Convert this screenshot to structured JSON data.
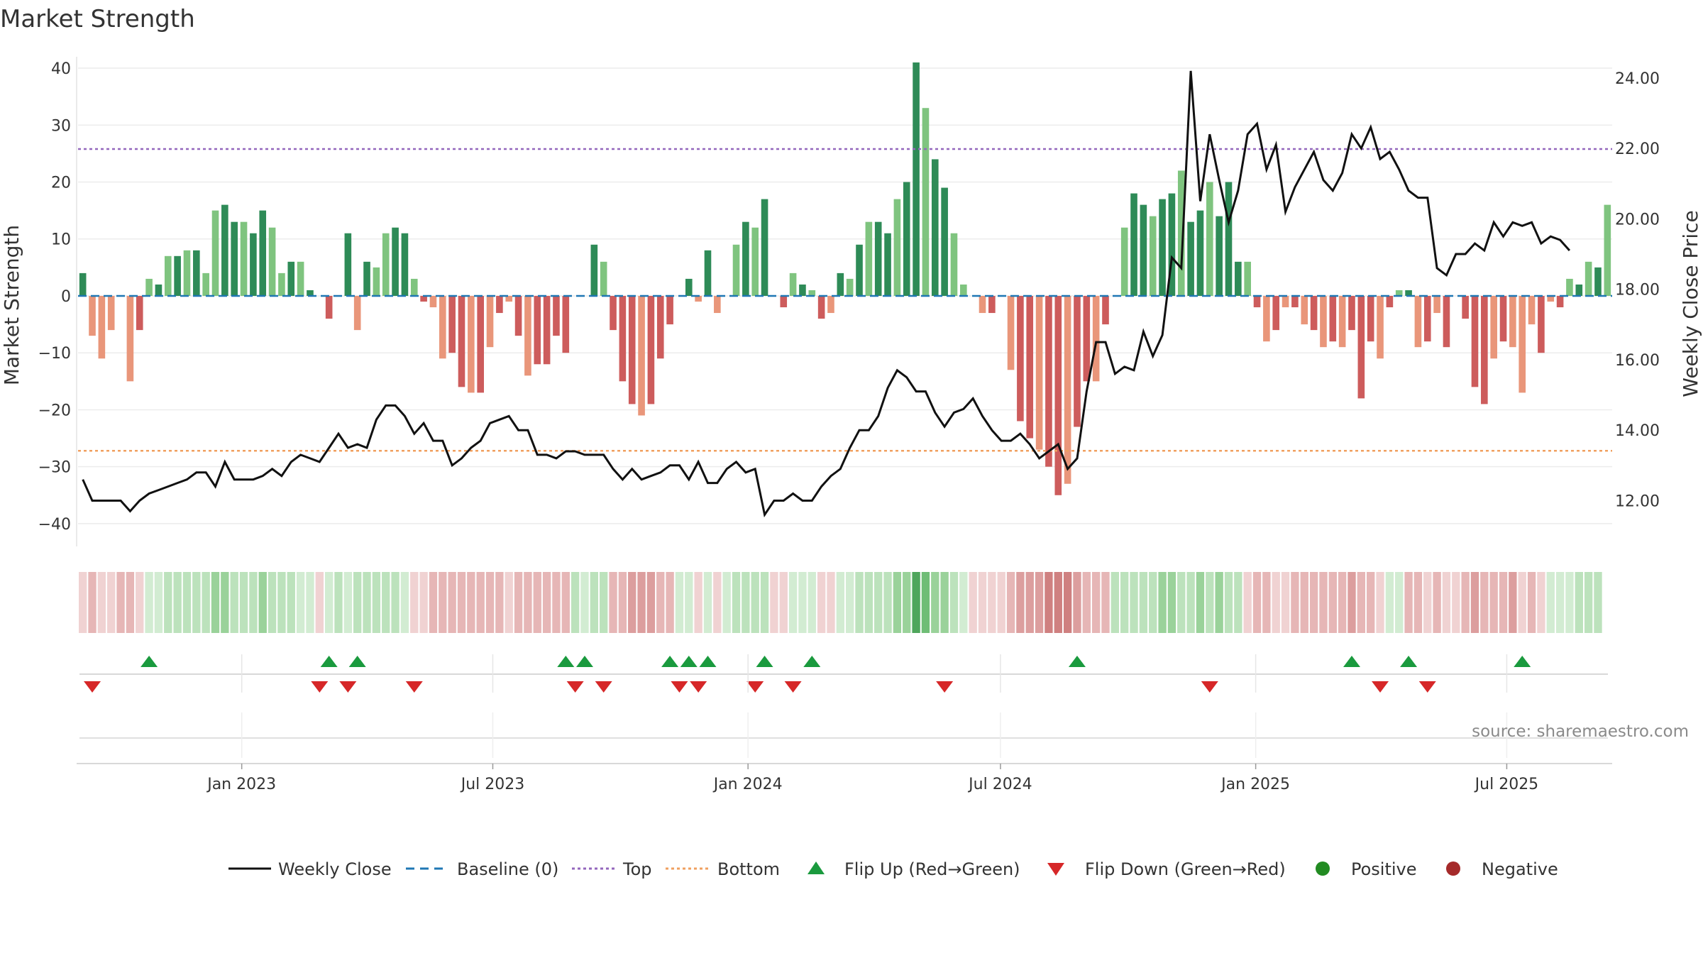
{
  "chart_data": {
    "type": "bar",
    "title": "Market Strength",
    "ylabel": "Market Strength",
    "y2label": "Weekly Close Price",
    "ylim": [
      -44,
      42
    ],
    "y2lim": [
      10.7,
      24.6
    ],
    "yticks": [
      40,
      30,
      20,
      10,
      0,
      -10,
      -20,
      -30,
      -40
    ],
    "ytick_labels": [
      "40",
      "30",
      "20",
      "10",
      "0",
      "−10",
      "−20",
      "−30",
      "−40"
    ],
    "y2ticks": [
      24,
      22,
      20,
      18,
      16,
      14,
      12
    ],
    "y2tick_labels": [
      "24.00",
      "22.00",
      "20.00",
      "18.00",
      "16.00",
      "14.00",
      "12.00"
    ],
    "top_line": 25.8,
    "bottom_line": -27.2,
    "x_start": "2022-09-05",
    "x_end": "2025-09-15",
    "xticks": [
      "2023-01-01",
      "2023-07-01",
      "2024-01-01",
      "2024-07-01",
      "2025-01-01",
      "2025-07-01"
    ],
    "xtick_labels": [
      "Jan 2023",
      "Jul 2023",
      "Jan 2024",
      "Jul 2024",
      "Jan 2025",
      "Jul 2025"
    ],
    "strength": [
      4,
      -7,
      -11,
      -6,
      0,
      -15,
      -6,
      3,
      2,
      7,
      7,
      8,
      8,
      4,
      15,
      16,
      13,
      13,
      11,
      15,
      12,
      4,
      6,
      6,
      1,
      0,
      -4,
      0,
      11,
      -6,
      6,
      5,
      11,
      12,
      11,
      3,
      -1,
      -2,
      -11,
      -10,
      -16,
      -17,
      -17,
      -9,
      -3,
      -1,
      -7,
      -14,
      -12,
      -12,
      -7,
      -10,
      0,
      0,
      9,
      6,
      -6,
      -15,
      -19,
      -21,
      -19,
      -11,
      -5,
      0,
      3,
      -1,
      8,
      -3,
      0,
      9,
      13,
      12,
      17,
      0,
      -2,
      4,
      2,
      1,
      -4,
      -3,
      4,
      3,
      9,
      13,
      13,
      11,
      17,
      20,
      41,
      33,
      24,
      19,
      11,
      2,
      0,
      -3,
      -3,
      0,
      -13,
      -22,
      -25,
      -27,
      -30,
      -35,
      -33,
      -23,
      -15,
      -15,
      -5,
      0,
      12,
      18,
      16,
      14,
      17,
      18,
      22,
      13,
      15,
      20,
      14,
      20,
      6,
      6,
      -2,
      -8,
      -6,
      -2,
      -2,
      -5,
      -6,
      -9,
      -8,
      -9,
      -6,
      -18,
      -8,
      -11,
      -2,
      1,
      1,
      -9,
      -8,
      -3,
      -9,
      0,
      -4,
      -16,
      -19,
      -11,
      -8,
      -9,
      -17,
      -5,
      -10,
      -1,
      -2,
      3,
      2,
      6,
      5,
      16
    ],
    "close": [
      12.6,
      12.0,
      12.0,
      12.0,
      12.0,
      11.7,
      12.0,
      12.2,
      12.3,
      12.4,
      12.5,
      12.6,
      12.8,
      12.8,
      12.4,
      13.1,
      12.6,
      12.6,
      12.6,
      12.7,
      12.9,
      12.7,
      13.1,
      13.3,
      13.2,
      13.1,
      13.5,
      13.9,
      13.5,
      13.6,
      13.5,
      14.3,
      14.7,
      14.7,
      14.4,
      13.9,
      14.2,
      13.7,
      13.7,
      13.0,
      13.2,
      13.5,
      13.7,
      14.2,
      14.3,
      14.4,
      14.0,
      14.0,
      13.3,
      13.3,
      13.2,
      13.4,
      13.4,
      13.3,
      13.3,
      13.3,
      12.9,
      12.6,
      12.9,
      12.6,
      12.7,
      12.8,
      13.0,
      13.0,
      12.6,
      13.1,
      12.5,
      12.5,
      12.9,
      13.1,
      12.8,
      12.9,
      11.6,
      12.0,
      12.0,
      12.2,
      12.0,
      12.0,
      12.4,
      12.7,
      12.9,
      13.5,
      14.0,
      14.0,
      14.4,
      15.2,
      15.7,
      15.5,
      15.1,
      15.1,
      14.5,
      14.1,
      14.5,
      14.6,
      14.9,
      14.4,
      14.0,
      13.7,
      13.7,
      13.9,
      13.6,
      13.2,
      13.4,
      13.6,
      12.9,
      13.2,
      15.1,
      16.5,
      16.5,
      15.6,
      15.8,
      15.7,
      16.8,
      16.1,
      16.7,
      18.9,
      18.6,
      24.2,
      20.5,
      22.4,
      21.1,
      19.9,
      20.8,
      22.4,
      22.7,
      21.4,
      22.1,
      20.2,
      20.9,
      21.4,
      21.9,
      21.1,
      20.8,
      21.3,
      22.4,
      22.0,
      22.6,
      21.7,
      21.9,
      21.4,
      20.8,
      20.6,
      20.6,
      18.6,
      18.4,
      19.0,
      19.0,
      19.3,
      19.1,
      19.9,
      19.5,
      19.9,
      19.8,
      19.9,
      19.3,
      19.5,
      19.4,
      19.1
    ],
    "heat_row": [
      -1,
      -2,
      -1,
      -1,
      -2,
      -2,
      -1,
      1,
      1,
      2,
      2,
      2,
      2,
      2,
      3,
      3,
      2,
      2,
      2,
      3,
      2,
      2,
      2,
      1,
      1,
      -1,
      1,
      2,
      1,
      2,
      2,
      2,
      2,
      2,
      1,
      -1,
      -1,
      -2,
      -2,
      -2,
      -2,
      -2,
      -2,
      -2,
      -2,
      -1,
      -2,
      -2,
      -2,
      -2,
      -2,
      -2,
      2,
      1,
      2,
      2,
      -2,
      -2,
      -3,
      -3,
      -3,
      -2,
      -2,
      1,
      1,
      -1,
      1,
      -1,
      1,
      2,
      2,
      2,
      2,
      -1,
      -1,
      1,
      1,
      1,
      -1,
      -1,
      1,
      1,
      2,
      2,
      2,
      2,
      3,
      3,
      5,
      4,
      3,
      3,
      2,
      1,
      -1,
      -1,
      -1,
      -1,
      -2,
      -3,
      -3,
      -3,
      -4,
      -4,
      -4,
      -3,
      -2,
      -2,
      -2,
      2,
      2,
      2,
      2,
      2,
      3,
      3,
      2,
      2,
      3,
      2,
      3,
      2,
      2,
      -1,
      -2,
      -2,
      -1,
      -1,
      -2,
      -2,
      -2,
      -2,
      -2,
      -2,
      -3,
      -2,
      -2,
      -1,
      1,
      1,
      -2,
      -2,
      -1,
      -2,
      -1,
      -1,
      -2,
      -3,
      -2,
      -2,
      -2,
      -3,
      -1,
      -2,
      -1,
      1,
      1,
      1,
      2,
      2,
      2
    ],
    "flip_up_weeks": [
      7,
      26,
      29,
      51,
      53,
      62,
      64,
      66,
      72,
      77,
      105,
      134,
      140,
      152
    ],
    "flip_down_weeks": [
      1,
      25,
      28,
      35,
      52,
      55,
      63,
      65,
      71,
      75,
      91,
      119,
      137,
      142
    ],
    "source_text": "source: sharemaestro.com",
    "legend": [
      "Weekly Close",
      "Baseline (0)",
      "Top",
      "Bottom",
      "Flip Up (Red→Green)",
      "Flip Down (Green→Red)",
      "Positive",
      "Negative"
    ]
  },
  "colors": {
    "pos_strong": "#2e8b57",
    "pos_light": "#7fc47f",
    "neg_strong": "#cd5c5c",
    "neg_light": "#e9967a",
    "top_line": "#9467bd",
    "bottom_line": "#f0a060",
    "baseline": "#1f77b4",
    "close_line": "#111111",
    "flip_up": "#1a9a3e",
    "flip_down": "#d62728",
    "positive_dot": "#228b22",
    "negative_dot": "#a52a2a"
  }
}
